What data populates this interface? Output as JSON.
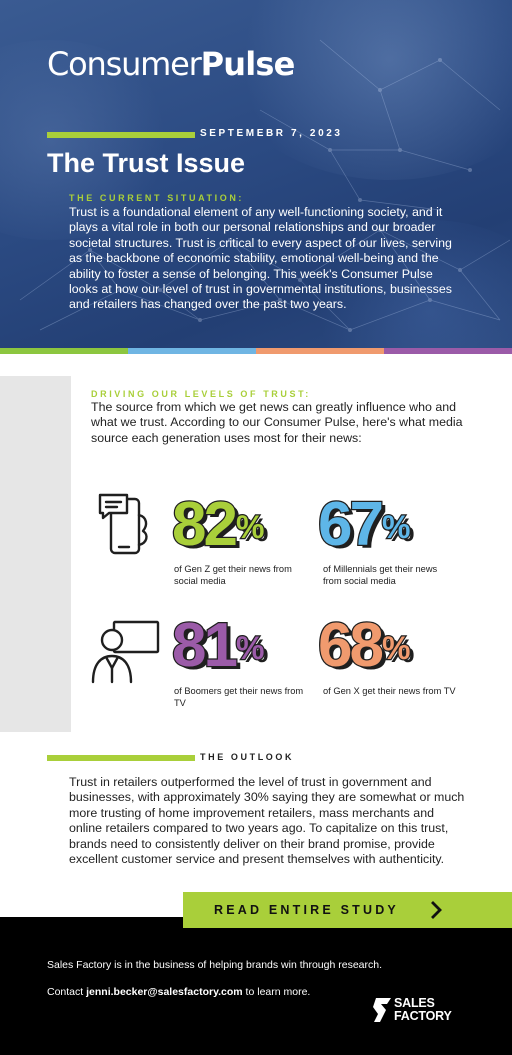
{
  "header": {
    "logo_light": "Consumer",
    "logo_bold": "Pulse",
    "date": "SEPTEMEBR 7, 2023",
    "title": "The Trust Issue"
  },
  "situation": {
    "heading": "THE CURRENT SITUATION:",
    "body": "Trust is a foundational element of any well-functioning society, and it plays a vital role in both our personal relationships and our broader societal structures. Trust is critical to every aspect of our lives, serving as the backbone of economic stability, emotional well-being and the ability to foster a sense of belonging. This week's Consumer Pulse looks at how our level of trust in governmental institutions, businesses and retailers has changed over the past two years."
  },
  "colors": {
    "green": "#a9cf3a",
    "blue": "#5eb6e8",
    "orange": "#f09a6e",
    "purple": "#9b5ba8",
    "hero_blue": "#2b4a82"
  },
  "trust": {
    "heading": "DRIVING OUR LEVELS OF TRUST:",
    "body": "The source from which we get news can greatly influence who and what we trust. According to our Consumer Pulse, here's what media source each generation uses most for their news:"
  },
  "stats": [
    {
      "value": "82",
      "unit": "%",
      "caption": "of Gen Z get their news from social media",
      "icon": "phone-chat-icon",
      "color": "green"
    },
    {
      "value": "67",
      "unit": "%",
      "caption": "of Millennials get their news from social media",
      "icon": "",
      "color": "blue"
    },
    {
      "value": "81",
      "unit": "%",
      "caption": "of Boomers get their news from TV",
      "icon": "person-tv-icon",
      "color": "purple"
    },
    {
      "value": "68",
      "unit": "%",
      "caption": "of Gen X get their news from TV",
      "icon": "",
      "color": "orange"
    }
  ],
  "outlook": {
    "heading": "THE OUTLOOK",
    "body": "Trust in retailers outperformed the level of trust in government and businesses, with approximately 30% saying they are somewhat or much more trusting of home improvement retailers, mass merchants and online retailers compared to two years ago. To capitalize on this trust, brands need to consistently deliver on their brand promise, provide excellent customer service and present themselves with authenticity."
  },
  "cta": {
    "label": "READ ENTIRE STUDY",
    "icon": "chevron-right-icon"
  },
  "footer": {
    "line1": "Sales Factory is in the business of helping brands win through research.",
    "contact_prefix": "Contact ",
    "email": "jenni.becker@salesfactory.com",
    "contact_suffix": " to learn more.",
    "logo_line1": "SALES",
    "logo_line2": "FACTORY"
  }
}
